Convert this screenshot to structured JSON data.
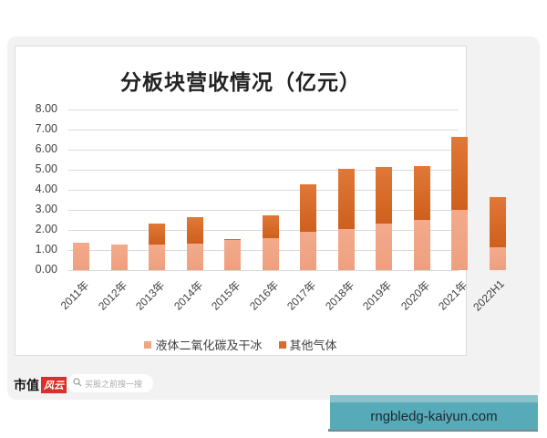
{
  "chart_data": {
    "type": "bar",
    "stacked": true,
    "title": "分板块营收情况（亿元）",
    "xlabel": "",
    "ylabel": "",
    "ylim": [
      0,
      8
    ],
    "yticks": [
      "0.00",
      "1.00",
      "2.00",
      "3.00",
      "4.00",
      "5.00",
      "6.00",
      "7.00",
      "8.00"
    ],
    "grid": true,
    "legend_position": "bottom",
    "categories": [
      "2011年",
      "2012年",
      "2013年",
      "2014年",
      "2015年",
      "2016年",
      "2017年",
      "2018年",
      "2019年",
      "2020年",
      "2021年",
      "2022H1"
    ],
    "series": [
      {
        "name": "液体二氧化碳及干冰",
        "color": "#f0a585",
        "values": [
          1.35,
          1.28,
          1.28,
          1.32,
          1.48,
          1.6,
          1.9,
          2.03,
          2.3,
          2.5,
          3.02,
          1.15
        ]
      },
      {
        "name": "其他气体",
        "color": "#d96a28",
        "values": [
          0.0,
          0.0,
          1.02,
          1.3,
          0.05,
          1.12,
          2.37,
          3.02,
          2.85,
          2.7,
          3.63,
          2.47
        ]
      }
    ]
  },
  "footer": {
    "brand": "市值",
    "brand_badge": "风云",
    "search_placeholder": "买股之前搜一搜"
  },
  "banner": {
    "text": "rngbledg-kaiyun.com"
  }
}
